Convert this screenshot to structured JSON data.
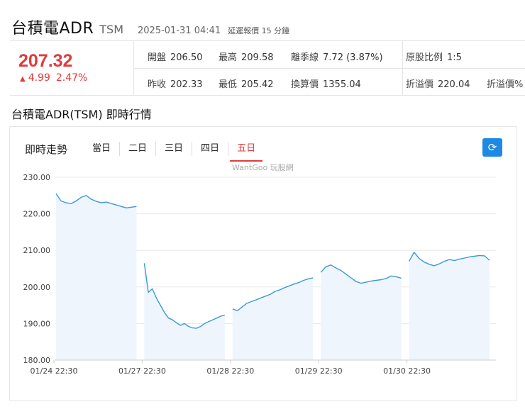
{
  "header": {
    "name": "台積電ADR",
    "ticker": "TSM",
    "time": "2025-01-31 04:41",
    "delay_note": "延遲報價 15 分鐘"
  },
  "quote": {
    "price": "207.32",
    "change": "4.99",
    "change_pct": "2.47%",
    "open_label": "開盤",
    "open": "206.50",
    "high_label": "最高",
    "high": "209.58",
    "deviation_label": "離季線",
    "deviation": "7.72 (3.87%)",
    "ratio_label": "原股比例",
    "ratio": "1:5",
    "prev_close_label": "昨收",
    "prev_close": "202.33",
    "low_label": "最低",
    "low": "205.42",
    "converted_label": "換算價",
    "converted": "1355.04",
    "discount_label": "折溢價",
    "discount": "220.04",
    "premium_label": "折溢價%"
  },
  "section_title": "台積電ADR(TSM) 即時行情",
  "panel": {
    "title": "即時走勢",
    "tabs": [
      "當日",
      "二日",
      "三日",
      "四日",
      "五日"
    ],
    "active_tab": 4,
    "watermark": "WantGoo 玩股網",
    "refresh_icon": "refresh-icon"
  },
  "colors": {
    "up": "#e03b3b",
    "line": "#3a9ad9",
    "fill": "#eef5fd",
    "accent": "#1e88e5"
  },
  "chart_data": {
    "type": "area",
    "ylim": [
      180,
      230
    ],
    "yticks": [
      "230.00",
      "220.00",
      "210.00",
      "200.00",
      "190.00",
      "180.00"
    ],
    "xticks": [
      "01/24 22:30",
      "01/27 22:30",
      "01/28 22:30",
      "01/29 22:30",
      "01/30 22:30"
    ],
    "grid": true,
    "sessions": [
      {
        "name": "01/24",
        "values": [
          225.5,
          223.5,
          223.0,
          222.8,
          223.5,
          224.5,
          225.0,
          224.0,
          223.4,
          223.0,
          223.2,
          222.8,
          222.4,
          222.0,
          221.6,
          221.8,
          222.0
        ]
      },
      {
        "name": "01/27",
        "values": [
          206.5,
          198.5,
          199.5,
          197.0,
          195.0,
          193.0,
          191.5,
          191.0,
          190.2,
          189.5,
          190.0,
          189.2,
          188.8,
          188.7,
          189.2,
          190.0,
          190.5,
          191.0,
          191.5,
          192.0,
          192.3
        ]
      },
      {
        "name": "01/28",
        "values": [
          194.0,
          193.5,
          194.5,
          195.5,
          196.0,
          196.5,
          197.0,
          197.5,
          198.0,
          198.8,
          199.2,
          199.8,
          200.3,
          200.8,
          201.2,
          201.8,
          202.2,
          202.5
        ]
      },
      {
        "name": "01/29",
        "values": [
          204.0,
          205.5,
          206.0,
          205.2,
          204.5,
          203.5,
          202.5,
          201.5,
          201.0,
          201.3,
          201.6,
          201.8,
          202.0,
          202.3,
          203.0,
          202.8,
          202.4
        ]
      },
      {
        "name": "01/30",
        "values": [
          207.0,
          209.5,
          207.8,
          206.8,
          206.2,
          205.8,
          206.3,
          207.0,
          207.5,
          207.2,
          207.6,
          207.9,
          208.2,
          208.4,
          208.6,
          208.5,
          207.3
        ]
      }
    ]
  }
}
